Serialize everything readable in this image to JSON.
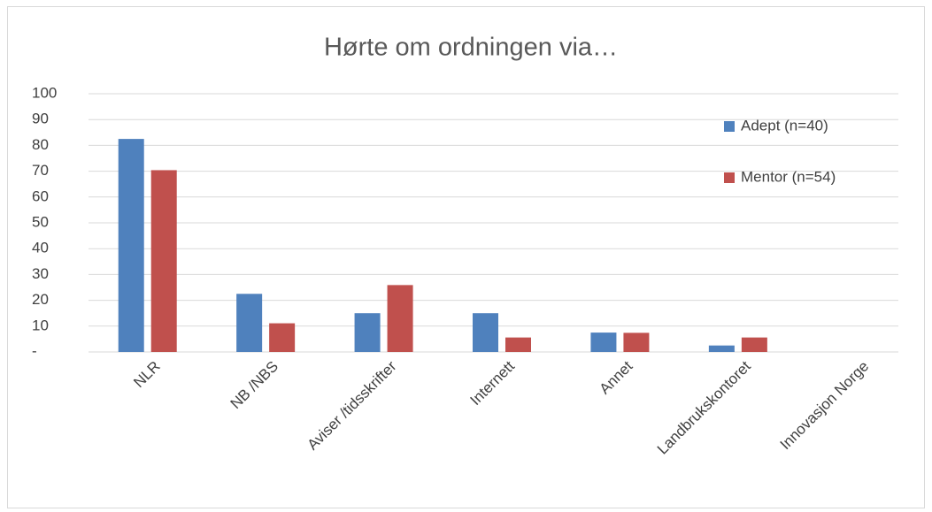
{
  "chart_data": {
    "type": "bar",
    "title": "Hørte om ordningen via…",
    "categories": [
      "NLR",
      "NB /NBS",
      "Aviser /tidsskrifter",
      "Internett",
      "Annet",
      "Landbrukskontoret",
      "Innovasjon Norge"
    ],
    "series": [
      {
        "name": "Adept (n=40)",
        "color": "#4f81bd",
        "values": [
          82.5,
          22.5,
          15,
          15,
          7.5,
          2.5,
          0
        ]
      },
      {
        "name": "Mentor (n=54)",
        "color": "#c0504d",
        "values": [
          70.4,
          11.1,
          25.9,
          5.6,
          7.4,
          5.6,
          0
        ]
      }
    ],
    "ylim": [
      0,
      100
    ],
    "yticks": [
      {
        "value": 0,
        "label": "-"
      },
      10,
      20,
      30,
      40,
      50,
      60,
      70,
      80,
      90,
      100
    ],
    "grid": true,
    "legend": "right"
  }
}
